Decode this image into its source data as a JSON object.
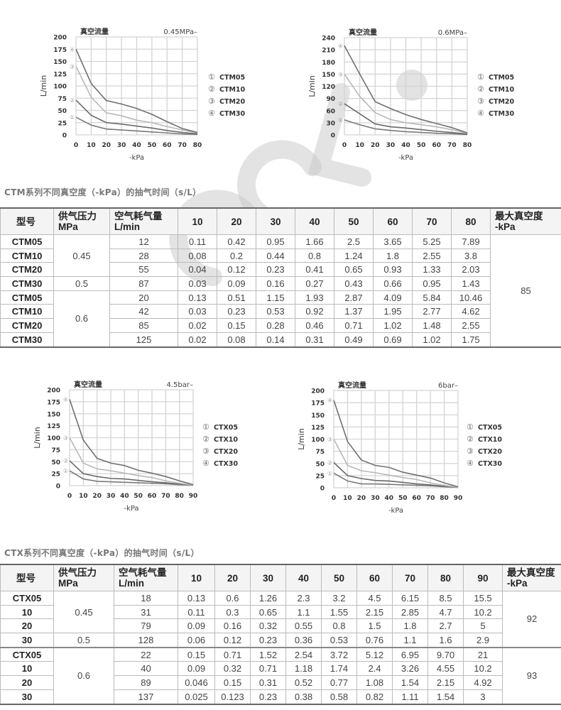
{
  "watermark": "CCLair",
  "chart_data": [
    {
      "type": "line",
      "title": "真空流量",
      "pressure_label": "0.45MPa–",
      "xlabel": "-kPa",
      "ylabel": "L/min",
      "x": [
        0,
        10,
        20,
        30,
        40,
        50,
        60,
        70,
        80
      ],
      "xticks": [
        "0",
        "10",
        "20",
        "30",
        "40",
        "50",
        "60",
        "70",
        "80"
      ],
      "ylim": [
        0,
        200
      ],
      "yticks": [
        "0",
        "25",
        "50",
        "75",
        "100",
        "125",
        "150",
        "175",
        "200"
      ],
      "grid": true,
      "legend_position": "right",
      "series": [
        {
          "marker": "①",
          "name": "CTM05",
          "values": [
            36,
            20,
            12,
            10,
            8,
            6,
            4,
            2,
            1
          ],
          "color": "#7a7a7a"
        },
        {
          "marker": "②",
          "name": "CTM10",
          "values": [
            71,
            40,
            25,
            22,
            18,
            14,
            9,
            5,
            2
          ],
          "color": "#6a6a6a"
        },
        {
          "marker": "③",
          "name": "CTM20",
          "values": [
            140,
            77,
            45,
            39,
            30,
            25,
            17,
            10,
            4
          ],
          "color": "#b8b8b8"
        },
        {
          "marker": "④",
          "name": "CTM30",
          "values": [
            175,
            105,
            70,
            63,
            54,
            42,
            27,
            13,
            5
          ],
          "color": "#707070"
        }
      ]
    },
    {
      "type": "line",
      "title": "真空流量",
      "pressure_label": "0.6MPa–",
      "xlabel": "-kPa",
      "ylabel": "L/min",
      "x": [
        0,
        10,
        20,
        30,
        40,
        50,
        60,
        70,
        80
      ],
      "xticks": [
        "0",
        "10",
        "20",
        "30",
        "40",
        "50",
        "60",
        "70",
        "80"
      ],
      "ylim": [
        0,
        240
      ],
      "yticks": [
        "0",
        "30",
        "60",
        "90",
        "120",
        "150",
        "180",
        "210",
        "240"
      ],
      "grid": true,
      "legend_position": "right",
      "series": [
        {
          "marker": "①",
          "name": "CTM05",
          "values": [
            37,
            25,
            15,
            11,
            8,
            6,
            4,
            3,
            1
          ],
          "color": "#7a7a7a"
        },
        {
          "marker": "②",
          "name": "CTM10",
          "values": [
            77,
            52,
            27,
            20,
            17,
            13,
            9,
            6,
            2
          ],
          "color": "#6a6a6a"
        },
        {
          "marker": "③",
          "name": "CTM20",
          "values": [
            150,
            95,
            55,
            38,
            30,
            25,
            20,
            13,
            4
          ],
          "color": "#b8b8b8"
        },
        {
          "marker": "④",
          "name": "CTM30",
          "values": [
            220,
            150,
            82,
            65,
            50,
            38,
            28,
            18,
            5
          ],
          "color": "#707070"
        }
      ]
    },
    {
      "type": "line",
      "title": "真空流量",
      "pressure_label": "4.5bar–",
      "xlabel": "-kPa",
      "ylabel": "L/min",
      "x": [
        0,
        10,
        20,
        30,
        40,
        50,
        60,
        70,
        80,
        90
      ],
      "xticks": [
        "0",
        "10",
        "20",
        "30",
        "40",
        "50",
        "60",
        "70",
        "80",
        "90"
      ],
      "ylim": [
        0,
        200
      ],
      "yticks": [
        "0",
        "25",
        "50",
        "75",
        "100",
        "125",
        "150",
        "175",
        "200"
      ],
      "grid": true,
      "legend_position": "right",
      "series": [
        {
          "marker": "①",
          "name": "CTX05",
          "values": [
            31,
            14,
            9,
            8,
            7,
            6,
            5,
            4,
            2,
            1
          ],
          "color": "#7a7a7a"
        },
        {
          "marker": "②",
          "name": "CTX10",
          "values": [
            52,
            25,
            19,
            15,
            14,
            11,
            8,
            6,
            3,
            1
          ],
          "color": "#6a6a6a"
        },
        {
          "marker": "③",
          "name": "CTX20",
          "values": [
            100,
            47,
            35,
            31,
            26,
            21,
            17,
            10,
            5,
            1
          ],
          "color": "#b8b8b8"
        },
        {
          "marker": "④",
          "name": "CTX30",
          "values": [
            180,
            95,
            57,
            47,
            42,
            32,
            26,
            19,
            10,
            2
          ],
          "color": "#707070"
        }
      ]
    },
    {
      "type": "line",
      "title": "真空流量",
      "pressure_label": "6bar–",
      "xlabel": "-kPa",
      "ylabel": "L/min",
      "x": [
        0,
        10,
        20,
        30,
        40,
        50,
        60,
        70,
        80,
        90
      ],
      "xticks": [
        "0",
        "10",
        "20",
        "30",
        "40",
        "50",
        "60",
        "70",
        "80",
        "90"
      ],
      "ylim": [
        0,
        200
      ],
      "yticks": [
        "0",
        "25",
        "50",
        "75",
        "100",
        "125",
        "150",
        "175",
        "200"
      ],
      "grid": true,
      "legend_position": "right",
      "series": [
        {
          "marker": "①",
          "name": "CTX05",
          "values": [
            30,
            14,
            8,
            8,
            7,
            6,
            5,
            4,
            2,
            1
          ],
          "color": "#7a7a7a"
        },
        {
          "marker": "②",
          "name": "CTX10",
          "values": [
            52,
            25,
            19,
            15,
            14,
            11,
            8,
            6,
            3,
            1
          ],
          "color": "#6a6a6a"
        },
        {
          "marker": "③",
          "name": "CTX20",
          "values": [
            100,
            46,
            35,
            31,
            26,
            21,
            17,
            10,
            5,
            1
          ],
          "color": "#b8b8b8"
        },
        {
          "marker": "④",
          "name": "CTX30",
          "values": [
            180,
            95,
            57,
            46,
            42,
            32,
            26,
            20,
            10,
            2
          ],
          "color": "#707070"
        }
      ]
    }
  ],
  "tables": [
    {
      "title": "CTM系列不同真空度（-kPa）的抽气时间（s/L）",
      "headers": [
        "型号",
        "供气压力\nMPa",
        "空气耗气量\nL/min",
        "10",
        "20",
        "30",
        "40",
        "50",
        "60",
        "70",
        "80",
        "最大真空度\n-kPa"
      ],
      "vacuum_groups": [
        {
          "max_vacuum": "85",
          "pressure_groups": [
            {
              "pressure": "0.45",
              "rows": [
                {
                  "model": "CTM05",
                  "flow": "12",
                  "times": [
                    "0.11",
                    "0.42",
                    "0.95",
                    "1.66",
                    "2.5",
                    "3.65",
                    "5.25",
                    "7.89"
                  ]
                },
                {
                  "model": "CTM10",
                  "flow": "28",
                  "times": [
                    "0.08",
                    "0.2",
                    "0.44",
                    "0.8",
                    "1.24",
                    "1.8",
                    "2.55",
                    "3.8"
                  ]
                },
                {
                  "model": "CTM20",
                  "flow": "55",
                  "times": [
                    "0.04",
                    "0.12",
                    "0.23",
                    "0.41",
                    "0.65",
                    "0.93",
                    "1.33",
                    "2.03"
                  ]
                }
              ]
            },
            {
              "pressure": "0.5",
              "rows": [
                {
                  "model": "CTM30",
                  "flow": "87",
                  "times": [
                    "0.03",
                    "0.09",
                    "0.16",
                    "0.27",
                    "0.43",
                    "0.66",
                    "0.95",
                    "1.43"
                  ]
                }
              ]
            },
            {
              "pressure": "0.6",
              "rows": [
                {
                  "model": "CTM05",
                  "flow": "20",
                  "times": [
                    "0.13",
                    "0.51",
                    "1.15",
                    "1.93",
                    "2.87",
                    "4.09",
                    "5.84",
                    "10.46"
                  ]
                },
                {
                  "model": "CTM10",
                  "flow": "42",
                  "times": [
                    "0.03",
                    "0.23",
                    "0.53",
                    "0.92",
                    "1.37",
                    "1.95",
                    "2.77",
                    "4.62"
                  ]
                },
                {
                  "model": "CTM20",
                  "flow": "85",
                  "times": [
                    "0.02",
                    "0.15",
                    "0.28",
                    "0.46",
                    "0.71",
                    "1.02",
                    "1.48",
                    "2.55"
                  ]
                },
                {
                  "model": "CTM30",
                  "flow": "125",
                  "times": [
                    "0.02",
                    "0.08",
                    "0.14",
                    "0.31",
                    "0.49",
                    "0.69",
                    "1.02",
                    "1.75"
                  ]
                }
              ]
            }
          ]
        }
      ]
    },
    {
      "title": "CTX系列不同真空度（-kPa）的抽气时间（s/L）",
      "headers": [
        "型号",
        "供气压力\nMPa",
        "空气耗气量\nL/min",
        "10",
        "20",
        "30",
        "40",
        "50",
        "60",
        "70",
        "80",
        "90",
        "最大真空度\n-kPa"
      ],
      "vacuum_groups": [
        {
          "max_vacuum": "92",
          "pressure_groups": [
            {
              "pressure": "0.45",
              "rows": [
                {
                  "model": "CTX05",
                  "flow": "18",
                  "times": [
                    "0.13",
                    "0.6",
                    "1.26",
                    "2.3",
                    "3.2",
                    "4.5",
                    "6.15",
                    "8.5",
                    "15.5"
                  ]
                },
                {
                  "model": "10",
                  "flow": "31",
                  "times": [
                    "0.11",
                    "0.3",
                    "0.65",
                    "1.1",
                    "1.55",
                    "2.15",
                    "2.85",
                    "4.7",
                    "10.2"
                  ]
                },
                {
                  "model": "20",
                  "flow": "79",
                  "times": [
                    "0.09",
                    "0.16",
                    "0.32",
                    "0.55",
                    "0.8",
                    "1.5",
                    "1.8",
                    "2.7",
                    "5"
                  ]
                }
              ]
            },
            {
              "pressure": "0.5",
              "rows": [
                {
                  "model": "30",
                  "flow": "128",
                  "times": [
                    "0.06",
                    "0.12",
                    "0.23",
                    "0.36",
                    "0.53",
                    "0.76",
                    "1.1",
                    "1.6",
                    "2.9"
                  ]
                }
              ]
            }
          ]
        },
        {
          "max_vacuum": "93",
          "pressure_groups": [
            {
              "pressure": "0.6",
              "rows": [
                {
                  "model": "CTX05",
                  "flow": "22",
                  "times": [
                    "0.15",
                    "0.71",
                    "1.52",
                    "2.54",
                    "3.72",
                    "5.12",
                    "6.95",
                    "9.70",
                    "21"
                  ]
                },
                {
                  "model": "10",
                  "flow": "40",
                  "times": [
                    "0.09",
                    "0.32",
                    "0.71",
                    "1.18",
                    "1.74",
                    "2.4",
                    "3.26",
                    "4.55",
                    "10.2"
                  ]
                },
                {
                  "model": "20",
                  "flow": "89",
                  "times": [
                    "0.046",
                    "0.15",
                    "0.31",
                    "0.52",
                    "0.77",
                    "1.08",
                    "1.54",
                    "2.15",
                    "4.92"
                  ]
                },
                {
                  "model": "30",
                  "flow": "137",
                  "times": [
                    "0.025",
                    "0.123",
                    "0.23",
                    "0.38",
                    "0.58",
                    "0.82",
                    "1.11",
                    "1.54",
                    "3"
                  ]
                }
              ]
            }
          ]
        }
      ]
    }
  ]
}
